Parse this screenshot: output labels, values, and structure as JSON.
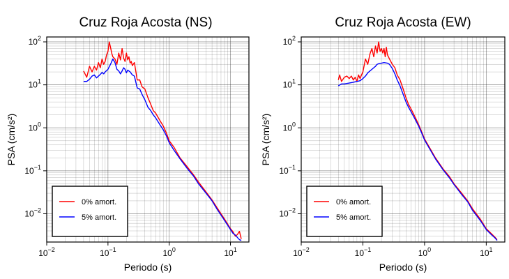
{
  "chart_data": [
    {
      "type": "line",
      "title": "Cruz Roja Acosta (NS)",
      "xlabel": "Periodo (s)",
      "ylabel": "PSA (cm/s²)",
      "xscale": "log",
      "yscale": "log",
      "xlim": [
        0.01,
        20
      ],
      "ylim": [
        0.0022,
        130
      ],
      "grid": true,
      "legend_position": "bottom-left",
      "x_ticks": [
        {
          "base": "10",
          "exp": "−2",
          "value": 0.01
        },
        {
          "base": "10",
          "exp": "−1",
          "value": 0.1
        },
        {
          "base": "10",
          "exp": "0",
          "value": 1
        },
        {
          "base": "10",
          "exp": "1",
          "value": 10
        }
      ],
      "y_ticks": [
        {
          "base": "10",
          "exp": "−2",
          "value": 0.01
        },
        {
          "base": "10",
          "exp": "−1",
          "value": 0.1
        },
        {
          "base": "10",
          "exp": "0",
          "value": 1
        },
        {
          "base": "10",
          "exp": "1",
          "value": 10
        },
        {
          "base": "10",
          "exp": "2",
          "value": 100
        }
      ],
      "series": [
        {
          "name": "0% amort.",
          "color": "#ff0000",
          "x": [
            0.04,
            0.045,
            0.05,
            0.055,
            0.06,
            0.065,
            0.07,
            0.075,
            0.08,
            0.085,
            0.09,
            0.095,
            0.1,
            0.105,
            0.11,
            0.115,
            0.12,
            0.13,
            0.14,
            0.15,
            0.16,
            0.17,
            0.18,
            0.19,
            0.2,
            0.21,
            0.22,
            0.23,
            0.24,
            0.25,
            0.27,
            0.3,
            0.33,
            0.36,
            0.4,
            0.45,
            0.5,
            0.55,
            0.6,
            0.7,
            0.8,
            0.9,
            1.0,
            1.2,
            1.5,
            2.0,
            2.5,
            3.0,
            4.0,
            5.0,
            6.0,
            8.0,
            10.0,
            11.0,
            12.0,
            13.0,
            14.0,
            15.0
          ],
          "y": [
            21,
            15,
            27,
            20,
            27,
            22,
            33,
            25,
            40,
            30,
            35,
            50,
            60,
            100,
            75,
            55,
            45,
            40,
            30,
            55,
            38,
            70,
            42,
            35,
            55,
            38,
            45,
            32,
            35,
            28,
            33,
            13,
            13,
            9,
            8,
            5,
            3.5,
            2.5,
            2.2,
            1.5,
            1.1,
            0.75,
            0.5,
            0.35,
            0.2,
            0.12,
            0.08,
            0.055,
            0.032,
            0.021,
            0.014,
            0.0075,
            0.0045,
            0.0038,
            0.003,
            0.0033,
            0.0039,
            0.0026
          ]
        },
        {
          "name": "5% amort.",
          "color": "#0000ff",
          "x": [
            0.04,
            0.045,
            0.05,
            0.055,
            0.06,
            0.065,
            0.07,
            0.075,
            0.08,
            0.085,
            0.09,
            0.1,
            0.11,
            0.12,
            0.13,
            0.14,
            0.15,
            0.16,
            0.17,
            0.18,
            0.19,
            0.2,
            0.21,
            0.22,
            0.23,
            0.25,
            0.27,
            0.3,
            0.33,
            0.36,
            0.4,
            0.45,
            0.5,
            0.55,
            0.6,
            0.7,
            0.8,
            0.9,
            1.0,
            1.2,
            1.5,
            2.0,
            2.5,
            3.0,
            4.0,
            5.0,
            6.0,
            8.0,
            10.0,
            11.0,
            12.0,
            13.0,
            14.0,
            15.0
          ],
          "y": [
            12,
            12,
            13.5,
            16,
            17,
            14.5,
            16,
            17.5,
            19.5,
            18,
            20,
            23,
            30,
            40,
            33,
            23,
            21,
            18,
            21,
            25,
            23,
            19,
            22,
            21,
            20,
            17,
            16,
            8.5,
            8,
            6,
            4.5,
            3,
            2.5,
            2,
            1.7,
            1.2,
            0.9,
            0.65,
            0.45,
            0.3,
            0.19,
            0.11,
            0.075,
            0.05,
            0.03,
            0.02,
            0.013,
            0.007,
            0.0043,
            0.0035,
            0.0032,
            0.0028,
            0.0025,
            0.0024
          ]
        }
      ]
    },
    {
      "type": "line",
      "title": "Cruz Roja Acosta (EW)",
      "xlabel": "Periodo (s)",
      "ylabel": "PSA (cm/s²)",
      "xscale": "log",
      "yscale": "log",
      "xlim": [
        0.01,
        20
      ],
      "ylim": [
        0.0022,
        130
      ],
      "grid": true,
      "legend_position": "bottom-left",
      "x_ticks": [
        {
          "base": "10",
          "exp": "−2",
          "value": 0.01
        },
        {
          "base": "10",
          "exp": "−1",
          "value": 0.1
        },
        {
          "base": "10",
          "exp": "0",
          "value": 1
        },
        {
          "base": "10",
          "exp": "1",
          "value": 10
        }
      ],
      "y_ticks": [
        {
          "base": "10",
          "exp": "−2",
          "value": 0.01
        },
        {
          "base": "10",
          "exp": "−1",
          "value": 0.1
        },
        {
          "base": "10",
          "exp": "0",
          "value": 1
        },
        {
          "base": "10",
          "exp": "1",
          "value": 10
        },
        {
          "base": "10",
          "exp": "2",
          "value": 100
        }
      ],
      "series": [
        {
          "name": "0% amort.",
          "color": "#ff0000",
          "x": [
            0.04,
            0.042,
            0.045,
            0.05,
            0.055,
            0.06,
            0.065,
            0.07,
            0.075,
            0.08,
            0.085,
            0.09,
            0.095,
            0.1,
            0.11,
            0.12,
            0.13,
            0.14,
            0.15,
            0.16,
            0.17,
            0.18,
            0.19,
            0.2,
            0.21,
            0.22,
            0.23,
            0.24,
            0.25,
            0.27,
            0.3,
            0.33,
            0.36,
            0.4,
            0.45,
            0.5,
            0.55,
            0.6,
            0.7,
            0.8,
            0.9,
            1.0,
            1.2,
            1.5,
            2.0,
            2.5,
            3.0,
            4.0,
            5.0,
            6.0,
            8.0,
            10.0,
            12.0,
            14.0,
            15.0
          ],
          "y": [
            13,
            17,
            12,
            15,
            16,
            14,
            16,
            13,
            15,
            12,
            17,
            14,
            17,
            20,
            40,
            30,
            52,
            70,
            45,
            80,
            55,
            100,
            60,
            70,
            55,
            70,
            45,
            75,
            50,
            40,
            30,
            25,
            17,
            13,
            8,
            5,
            3.5,
            2.8,
            1.8,
            1.2,
            0.8,
            0.55,
            0.35,
            0.2,
            0.11,
            0.075,
            0.05,
            0.03,
            0.02,
            0.013,
            0.0075,
            0.0045,
            0.0035,
            0.0028,
            0.0025
          ]
        },
        {
          "name": "5% amort.",
          "color": "#0000ff",
          "x": [
            0.04,
            0.045,
            0.05,
            0.06,
            0.07,
            0.08,
            0.09,
            0.1,
            0.11,
            0.12,
            0.13,
            0.14,
            0.15,
            0.16,
            0.17,
            0.18,
            0.2,
            0.22,
            0.25,
            0.27,
            0.3,
            0.33,
            0.36,
            0.4,
            0.45,
            0.5,
            0.55,
            0.6,
            0.7,
            0.8,
            0.9,
            1.0,
            1.2,
            1.5,
            2.0,
            2.5,
            3.0,
            4.0,
            5.0,
            6.0,
            8.0,
            10.0,
            12.0,
            14.0,
            15.0
          ],
          "y": [
            9.5,
            10.5,
            10.5,
            11,
            11.5,
            12,
            12.5,
            14,
            16,
            19,
            21,
            23,
            25,
            27,
            30,
            31,
            32,
            33,
            32,
            30,
            24,
            18,
            13,
            9.5,
            6,
            4,
            3,
            2.4,
            1.6,
            1.1,
            0.75,
            0.52,
            0.33,
            0.19,
            0.105,
            0.07,
            0.048,
            0.028,
            0.019,
            0.012,
            0.007,
            0.0043,
            0.0033,
            0.0027,
            0.0024
          ]
        }
      ]
    }
  ]
}
